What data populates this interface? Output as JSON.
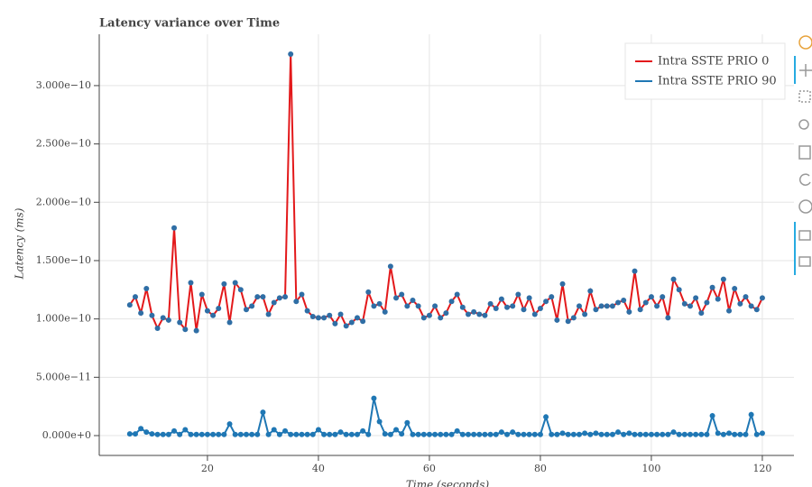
{
  "chart_data": {
    "type": "line",
    "title": "Latency variance over Time",
    "x_label": "Time (seconds)",
    "y_label": "Latency (ms)",
    "xlim": [
      0.5,
      125.7
    ],
    "ylim": [
      -1.7e-11,
      3.44e-10
    ],
    "xticks": [
      20,
      40,
      60,
      80,
      100,
      120
    ],
    "yticks": [
      {
        "value": 0,
        "label": "0.000e+0"
      },
      {
        "value": 5e-11,
        "label": "5.000e−11"
      },
      {
        "value": 1e-10,
        "label": "1.000e−10"
      },
      {
        "value": 1.5e-10,
        "label": "1.500e−10"
      },
      {
        "value": 2e-10,
        "label": "2.000e−10"
      },
      {
        "value": 2.5e-10,
        "label": "2.500e−10"
      },
      {
        "value": 3e-10,
        "label": "3.000e−10"
      }
    ],
    "grid": true,
    "legend": "top-right",
    "x": [
      6,
      7,
      8,
      9,
      10,
      11,
      12,
      13,
      14,
      15,
      16,
      17,
      18,
      19,
      20,
      21,
      22,
      23,
      24,
      25,
      26,
      27,
      28,
      29,
      30,
      31,
      32,
      33,
      34,
      35,
      36,
      37,
      38,
      39,
      40,
      41,
      42,
      43,
      44,
      45,
      46,
      47,
      48,
      49,
      50,
      51,
      52,
      53,
      54,
      55,
      56,
      57,
      58,
      59,
      60,
      61,
      62,
      63,
      64,
      65,
      66,
      67,
      68,
      69,
      70,
      71,
      72,
      73,
      74,
      75,
      76,
      77,
      78,
      79,
      80,
      81,
      82,
      83,
      84,
      85,
      86,
      87,
      88,
      89,
      90,
      91,
      92,
      93,
      94,
      95,
      96,
      97,
      98,
      99,
      100,
      101,
      102,
      103,
      104,
      105,
      106,
      107,
      108,
      109,
      110,
      111,
      112,
      113,
      114,
      115,
      116,
      117,
      118,
      119,
      120
    ],
    "series": [
      {
        "name": "Intra SSTE PRIO 0",
        "color": "#e3191b",
        "marker_color": "#2f6ea5",
        "values": [
          1.12e-10,
          1.19e-10,
          1.05e-10,
          1.26e-10,
          1.03e-10,
          9.2e-11,
          1.01e-10,
          9.9e-11,
          1.78e-10,
          9.7e-11,
          9.1e-11,
          1.31e-10,
          9e-11,
          1.21e-10,
          1.07e-10,
          1.03e-10,
          1.09e-10,
          1.3e-10,
          9.7e-11,
          1.31e-10,
          1.25e-10,
          1.08e-10,
          1.11e-10,
          1.19e-10,
          1.19e-10,
          1.04e-10,
          1.14e-10,
          1.18e-10,
          1.19e-10,
          3.27e-10,
          1.15e-10,
          1.21e-10,
          1.07e-10,
          1.02e-10,
          1.01e-10,
          1.01e-10,
          1.03e-10,
          9.6e-11,
          1.04e-10,
          9.4e-11,
          9.7e-11,
          1.01e-10,
          9.8e-11,
          1.23e-10,
          1.11e-10,
          1.13e-10,
          1.06e-10,
          1.45e-10,
          1.18e-10,
          1.21e-10,
          1.11e-10,
          1.16e-10,
          1.11e-10,
          1.01e-10,
          1.03e-10,
          1.11e-10,
          1.01e-10,
          1.05e-10,
          1.15e-10,
          1.21e-10,
          1.1e-10,
          1.04e-10,
          1.06e-10,
          1.04e-10,
          1.03e-10,
          1.13e-10,
          1.09e-10,
          1.17e-10,
          1.1e-10,
          1.11e-10,
          1.21e-10,
          1.08e-10,
          1.18e-10,
          1.04e-10,
          1.09e-10,
          1.15e-10,
          1.19e-10,
          9.9e-11,
          1.3e-10,
          9.8e-11,
          1.01e-10,
          1.11e-10,
          1.04e-10,
          1.24e-10,
          1.08e-10,
          1.11e-10,
          1.11e-10,
          1.11e-10,
          1.14e-10,
          1.16e-10,
          1.06e-10,
          1.41e-10,
          1.08e-10,
          1.14e-10,
          1.19e-10,
          1.11e-10,
          1.19e-10,
          1.01e-10,
          1.34e-10,
          1.25e-10,
          1.13e-10,
          1.11e-10,
          1.18e-10,
          1.05e-10,
          1.14e-10,
          1.27e-10,
          1.17e-10,
          1.34e-10,
          1.07e-10,
          1.26e-10,
          1.13e-10,
          1.19e-10,
          1.11e-10,
          1.08e-10,
          1.18e-10
        ]
      },
      {
        "name": "Intra SSTE PRIO 90",
        "color": "#1f77b4",
        "marker_color": "#1f77b4",
        "values": [
          1.5e-12,
          1.5e-12,
          6e-12,
          3e-12,
          1.5e-12,
          1e-12,
          1e-12,
          1e-12,
          4e-12,
          1e-12,
          5e-12,
          1e-12,
          1e-12,
          1e-12,
          1e-12,
          1e-12,
          1e-12,
          1e-12,
          1e-11,
          1e-12,
          1e-12,
          1e-12,
          1e-12,
          1e-12,
          2e-11,
          1e-12,
          5e-12,
          1e-12,
          4e-12,
          1e-12,
          1e-12,
          1e-12,
          1e-12,
          1e-12,
          5e-12,
          1e-12,
          1e-12,
          1e-12,
          3e-12,
          1e-12,
          1e-12,
          1e-12,
          4e-12,
          1e-12,
          3.2e-11,
          1.2e-11,
          1.5e-12,
          1e-12,
          5e-12,
          1.5e-12,
          1.1e-11,
          1e-12,
          1e-12,
          1e-12,
          1e-12,
          1e-12,
          1e-12,
          1e-12,
          1e-12,
          4e-12,
          1e-12,
          1e-12,
          1e-12,
          1e-12,
          1e-12,
          1e-12,
          1e-12,
          3e-12,
          1e-12,
          3e-12,
          1e-12,
          1e-12,
          1e-12,
          1e-12,
          1e-12,
          1.6e-11,
          1e-12,
          1e-12,
          2e-12,
          1e-12,
          1e-12,
          1e-12,
          2e-12,
          1e-12,
          2e-12,
          1e-12,
          1e-12,
          1e-12,
          3e-12,
          1e-12,
          2e-12,
          1e-12,
          1e-12,
          1e-12,
          1e-12,
          1e-12,
          1e-12,
          1e-12,
          3e-12,
          1e-12,
          1e-12,
          1e-12,
          1e-12,
          1e-12,
          1e-12,
          1.7e-11,
          2e-12,
          1e-12,
          2e-12,
          1e-12,
          1e-12,
          1e-12,
          1.8e-11,
          1e-12,
          2e-12
        ]
      }
    ]
  }
}
